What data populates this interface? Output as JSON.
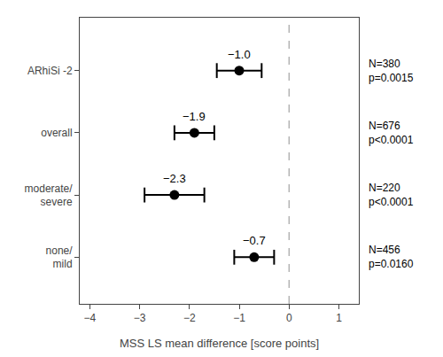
{
  "chart_data": {
    "type": "forest",
    "xlabel": "MSS LS mean difference [score points]",
    "categories": [
      "ARhiSi -2",
      "overall",
      "moderate/\nsevere",
      "none/\nmild"
    ],
    "values": [
      -1.0,
      -1.9,
      -2.3,
      -0.7
    ],
    "ci_low": [
      -1.45,
      -2.3,
      -2.9,
      -1.1
    ],
    "ci_high": [
      -0.55,
      -1.5,
      -1.7,
      -0.3
    ],
    "data_labels": true,
    "value_labels": [
      "−1.0",
      "−1.9",
      "−2.3",
      "−0.7"
    ],
    "annotations": [
      "N=380\np=0.0015",
      "N=676\np<0.0001",
      "N=220\np<0.0001",
      "N=456\np=0.0160"
    ],
    "reference_line": 0,
    "xlim": [
      -4.2,
      1.4
    ],
    "xticks": [
      {
        "value": -4,
        "label": "−4"
      },
      {
        "value": -3,
        "label": "−3"
      },
      {
        "value": -2,
        "label": "−2"
      },
      {
        "value": -1,
        "label": "−1"
      },
      0,
      1
    ],
    "color": "#000000",
    "grid": false
  }
}
